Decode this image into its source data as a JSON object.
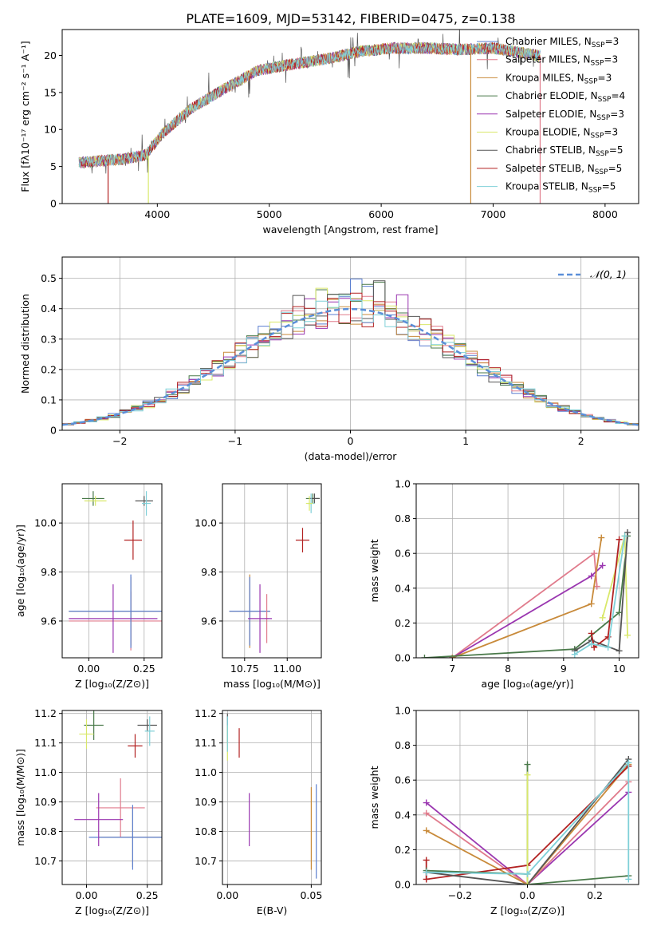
{
  "figure_title": "PLATE=1609, MJD=53142, FIBERID=0475, z=0.138",
  "colors": {
    "chabrier_miles": "#5b7fd0",
    "salpeter_miles": "#e07b8c",
    "kroupa_miles": "#c88a3a",
    "chabrier_elodie": "#4a7a4a",
    "salpeter_elodie": "#9a36b0",
    "kroupa_elodie": "#d9e86a",
    "chabrier_stelib": "#555555",
    "salpeter_stelib": "#b22222",
    "kroupa_stelib": "#7fd0d8",
    "grid": "#b0b0b0",
    "normal_curve": "#5b8fd8"
  },
  "chart_data": [
    {
      "id": "spectrum",
      "type": "line",
      "xlabel": "wavelength [Angstrom, rest frame]",
      "ylabel": "Flux [fλ10⁻¹⁷ erg cm⁻² s⁻¹ A⁻¹]",
      "xlim": [
        3150,
        8300
      ],
      "ylim": [
        0,
        23.5
      ],
      "xticks": [
        4000,
        5000,
        6000,
        7000,
        8000
      ],
      "yticks": [
        0,
        5,
        10,
        15,
        20
      ],
      "grid": false,
      "legend": "right",
      "continuum": [
        [
          3300,
          5.5
        ],
        [
          3500,
          5.8
        ],
        [
          3700,
          6.0
        ],
        [
          3900,
          6.6
        ],
        [
          4050,
          9.5
        ],
        [
          4300,
          12.8
        ],
        [
          4600,
          15.5
        ],
        [
          4900,
          18.0
        ],
        [
          5200,
          18.8
        ],
        [
          5500,
          19.5
        ],
        [
          5800,
          20.5
        ],
        [
          6100,
          21.0
        ],
        [
          6400,
          21.0
        ],
        [
          6700,
          20.8
        ],
        [
          7000,
          21.0
        ],
        [
          7400,
          20.0
        ]
      ],
      "spectrum_range": [
        3300,
        7420
      ],
      "series": [
        {
          "name": "Chabrier MILES, N$_{SSP}$=3",
          "label": "Chabrier MILES, N",
          "sub": "SSP",
          "suffix": "=3",
          "color": "#5b7fd0"
        },
        {
          "name": "Salpeter MILES, N$_{SSP}$=3",
          "label": "Salpeter MILES, N",
          "sub": "SSP",
          "suffix": "=3",
          "color": "#e07b8c"
        },
        {
          "name": "Kroupa MILES, N$_{SSP}$=3",
          "label": "Kroupa MILES, N",
          "sub": "SSP",
          "suffix": "=3",
          "color": "#c88a3a"
        },
        {
          "name": "Chabrier ELODIE, N$_{SSP}$=4",
          "label": "Chabrier ELODIE, N",
          "sub": "SSP",
          "suffix": "=4",
          "color": "#4a7a4a"
        },
        {
          "name": "Salpeter ELODIE, N$_{SSP}$=3",
          "label": "Salpeter ELODIE, N",
          "sub": "SSP",
          "suffix": "=3",
          "color": "#9a36b0"
        },
        {
          "name": "Kroupa ELODIE, N$_{SSP}$=3",
          "label": "Kroupa ELODIE, N",
          "sub": "SSP",
          "suffix": "=3",
          "color": "#d9e86a"
        },
        {
          "name": "Chabrier STELIB, N$_{SSP}$=5",
          "label": "Chabrier STELIB, N",
          "sub": "SSP",
          "suffix": "=5",
          "color": "#555555"
        },
        {
          "name": "Salpeter STELIB, N$_{SSP}$=5",
          "label": "Salpeter STELIB, N",
          "sub": "SSP",
          "suffix": "=5",
          "color": "#b22222"
        },
        {
          "name": "Kroupa STELIB, N$_{SSP}$=5",
          "label": "Kroupa STELIB, N",
          "sub": "SSP",
          "suffix": "=5",
          "color": "#7fd0d8"
        }
      ],
      "edge_drops": [
        {
          "color": "#b22222",
          "x": 3560,
          "y_from": 6
        },
        {
          "color": "#d9e86a",
          "x": 3920,
          "y_from": 6.5
        },
        {
          "color": "#c88a3a",
          "x": 6800,
          "y_from": 21
        },
        {
          "color": "#e07b8c",
          "x": 7420,
          "y_from": 20
        }
      ]
    },
    {
      "id": "residuals",
      "type": "histogram",
      "xlabel": "(data-model)/error",
      "ylabel": "Normed distribution",
      "xlim": [
        -2.5,
        2.5
      ],
      "ylim": [
        0,
        0.57
      ],
      "xticks": [
        -2,
        -1,
        0,
        1,
        2
      ],
      "xtick_labels": [
        "−2",
        "−1",
        "0",
        "1",
        "2"
      ],
      "yticks": [
        0.0,
        0.1,
        0.2,
        0.3,
        0.4,
        0.5
      ],
      "grid": true,
      "legend": "top-right",
      "normal_label": "𝒩(0, 1)",
      "bin_width": 0.1,
      "histogram_colors": [
        "#5b7fd0",
        "#e07b8c",
        "#c88a3a",
        "#4a7a4a",
        "#9a36b0",
        "#d9e86a",
        "#555555",
        "#b22222",
        "#7fd0d8"
      ]
    },
    {
      "id": "age_vs_Z",
      "type": "errorbar",
      "xlabel": "Z [log₁₀(Z/Z⊙)]",
      "ylabel": "age  [log₁₀(age/yr)]",
      "xlim": [
        -0.12,
        0.33
      ],
      "ylim": [
        9.45,
        10.16
      ],
      "xticks": [
        0.0,
        0.25
      ],
      "xtick_labels": [
        "0.00",
        "0.25"
      ],
      "yticks": [
        9.6,
        9.8,
        10.0
      ],
      "ytick_labels": [
        "9.6",
        "9.8",
        "10.0"
      ],
      "grid": true,
      "points": [
        {
          "color": "#4a7a4a",
          "x": 0.02,
          "y": 10.1,
          "xerr": 0.05,
          "yerr": 0.03
        },
        {
          "color": "#d9e86a",
          "x": 0.03,
          "y": 10.09,
          "xerr": 0.05,
          "yerr": 0.02
        },
        {
          "color": "#555555",
          "x": 0.25,
          "y": 10.09,
          "xerr": 0.04,
          "yerr": 0.02
        },
        {
          "color": "#7fd0d8",
          "x": 0.26,
          "y": 10.08,
          "xerr": 0.02,
          "yerr": 0.05
        },
        {
          "color": "#b22222",
          "x": 0.2,
          "y": 9.93,
          "xerr": 0.04,
          "yerr": 0.08
        },
        {
          "color": "#e07b8c",
          "x": 0.19,
          "y": 9.6,
          "xerr": 0.28,
          "yerr": 0.12
        },
        {
          "color": "#c88a3a",
          "x": 0.19,
          "y": 9.64,
          "xerr": 0.28,
          "yerr": 0.14
        },
        {
          "color": "#5b7fd0",
          "x": 0.19,
          "y": 9.64,
          "xerr": 0.28,
          "yerr": 0.15
        },
        {
          "color": "#9a36b0",
          "x": 0.11,
          "y": 9.61,
          "xerr": 0.2,
          "yerr": 0.14
        }
      ]
    },
    {
      "id": "age_vs_mass",
      "type": "errorbar",
      "xlabel": "mass [log₁₀(M/M⊙)]",
      "ylabel": "",
      "xlim": [
        10.62,
        11.2
      ],
      "ylim": [
        9.45,
        10.16
      ],
      "xticks": [
        10.75,
        11.0
      ],
      "xtick_labels": [
        "10.75",
        "11.00"
      ],
      "yticks": [
        9.6,
        9.8,
        10.0
      ],
      "ytick_labels": [
        "9.6",
        "9.8",
        "10.0"
      ],
      "grid": true,
      "points": [
        {
          "color": "#4a7a4a",
          "x": 11.15,
          "y": 10.1,
          "xerr": 0.04,
          "yerr": 0.02
        },
        {
          "color": "#555555",
          "x": 11.16,
          "y": 10.1,
          "xerr": 0.03,
          "yerr": 0.02
        },
        {
          "color": "#7fd0d8",
          "x": 11.14,
          "y": 10.08,
          "xerr": 0.02,
          "yerr": 0.04
        },
        {
          "color": "#d9e86a",
          "x": 11.13,
          "y": 10.08,
          "xerr": 0.02,
          "yerr": 0.03
        },
        {
          "color": "#b22222",
          "x": 11.09,
          "y": 9.93,
          "xerr": 0.04,
          "yerr": 0.05
        },
        {
          "color": "#c88a3a",
          "x": 10.78,
          "y": 9.64,
          "xerr": 0.12,
          "yerr": 0.15
        },
        {
          "color": "#5b7fd0",
          "x": 10.78,
          "y": 9.64,
          "xerr": 0.12,
          "yerr": 0.14
        },
        {
          "color": "#e07b8c",
          "x": 10.88,
          "y": 9.61,
          "xerr": 0.01,
          "yerr": 0.1
        },
        {
          "color": "#9a36b0",
          "x": 10.84,
          "y": 9.61,
          "xerr": 0.07,
          "yerr": 0.14
        }
      ]
    },
    {
      "id": "weight_vs_age",
      "type": "line",
      "xlabel": "age  [log₁₀(age/yr)]",
      "ylabel": "mass weight",
      "xlim": [
        6.35,
        10.35
      ],
      "ylim": [
        0,
        1.0
      ],
      "xticks": [
        7,
        8,
        9,
        10
      ],
      "yticks": [
        0.0,
        0.2,
        0.4,
        0.6,
        0.8,
        1.0
      ],
      "ytick_labels": [
        "0.0",
        "0.2",
        "0.4",
        "0.6",
        "0.8",
        "1.0"
      ],
      "grid": true,
      "series": [
        {
          "color": "#e07b8c",
          "points": [
            [
              7.0,
              0.0
            ],
            [
              9.55,
              0.6
            ],
            [
              9.6,
              0.41
            ]
          ]
        },
        {
          "color": "#9a36b0",
          "points": [
            [
              7.0,
              0.0
            ],
            [
              9.5,
              0.47
            ],
            [
              9.7,
              0.53
            ]
          ]
        },
        {
          "color": "#c88a3a",
          "points": [
            [
              7.0,
              0.0
            ],
            [
              9.5,
              0.31
            ],
            [
              9.68,
              0.69
            ]
          ]
        },
        {
          "color": "#4a7a4a",
          "points": [
            [
              6.5,
              0.0
            ],
            [
              9.2,
              0.05
            ],
            [
              10.0,
              0.26
            ],
            [
              10.15,
              0.7
            ]
          ]
        },
        {
          "color": "#d9e86a",
          "points": [
            [
              9.7,
              0.23
            ],
            [
              10.1,
              0.7
            ],
            [
              10.15,
              0.13
            ]
          ]
        },
        {
          "color": "#555555",
          "points": [
            [
              9.2,
              0.04
            ],
            [
              9.5,
              0.1
            ],
            [
              10.0,
              0.04
            ],
            [
              10.15,
              0.72
            ]
          ]
        },
        {
          "color": "#b22222",
          "points": [
            [
              9.5,
              0.14
            ],
            [
              9.55,
              0.06
            ],
            [
              9.8,
              0.12
            ],
            [
              10.0,
              0.68
            ]
          ]
        },
        {
          "color": "#7fd0d8",
          "points": [
            [
              9.2,
              0.02
            ],
            [
              9.5,
              0.08
            ],
            [
              9.8,
              0.06
            ],
            [
              10.1,
              0.7
            ]
          ]
        }
      ]
    },
    {
      "id": "mass_vs_Z",
      "type": "errorbar",
      "xlabel": "Z [log₁₀(Z/Z⊙)]",
      "ylabel": "mass [log₁₀(M/M⊙)]",
      "xlim": [
        -0.1,
        0.31
      ],
      "ylim": [
        10.62,
        11.21
      ],
      "xticks": [
        0.0,
        0.25
      ],
      "xtick_labels": [
        "0.00",
        "0.25"
      ],
      "yticks": [
        10.7,
        10.8,
        10.9,
        11.0,
        11.1,
        11.2
      ],
      "ytick_labels": [
        "10.7",
        "10.8",
        "10.9",
        "11.0",
        "11.1",
        "11.2"
      ],
      "grid": true,
      "points": [
        {
          "color": "#4a7a4a",
          "x": 0.03,
          "y": 11.16,
          "xerr": 0.04,
          "yerr": 0.05
        },
        {
          "color": "#d9e86a",
          "x": 0.0,
          "y": 11.13,
          "xerr": 0.03,
          "yerr": 0.05
        },
        {
          "color": "#555555",
          "x": 0.25,
          "y": 11.16,
          "xerr": 0.04,
          "yerr": 0.02
        },
        {
          "color": "#7fd0d8",
          "x": 0.26,
          "y": 11.14,
          "xerr": 0.02,
          "yerr": 0.05
        },
        {
          "color": "#b22222",
          "x": 0.2,
          "y": 11.09,
          "xerr": 0.03,
          "yerr": 0.04
        },
        {
          "color": "#e07b8c",
          "x": 0.14,
          "y": 10.88,
          "xerr": 0.1,
          "yerr": 0.1
        },
        {
          "color": "#c88a3a",
          "x": 0.19,
          "y": 10.78,
          "xerr": 0.14,
          "yerr": 0.1
        },
        {
          "color": "#5b7fd0",
          "x": 0.19,
          "y": 10.78,
          "xerr": 0.18,
          "yerr": 0.11
        },
        {
          "color": "#9a36b0",
          "x": 0.05,
          "y": 10.84,
          "xerr": 0.1,
          "yerr": 0.09
        }
      ]
    },
    {
      "id": "mass_vs_ebv",
      "type": "errorbar",
      "xlabel": "E(B-V)",
      "ylabel": "",
      "xlim": [
        -0.003,
        0.056
      ],
      "ylim": [
        10.62,
        11.21
      ],
      "xticks": [
        0.0,
        0.05
      ],
      "xtick_labels": [
        "0.00",
        "0.05"
      ],
      "yticks": [
        10.7,
        10.8,
        10.9,
        11.0,
        11.1,
        11.2
      ],
      "ytick_labels": [
        "10.7",
        "10.8",
        "10.9",
        "11.0",
        "11.1",
        "11.2"
      ],
      "grid": true,
      "points": [
        {
          "color": "#555555",
          "x": 0.0,
          "y": 11.15,
          "xerr": 0,
          "yerr": 0.05
        },
        {
          "color": "#d9e86a",
          "x": 0.0,
          "y": 11.1,
          "xerr": 0,
          "yerr": 0.06
        },
        {
          "color": "#7fd0d8",
          "x": 0.0,
          "y": 11.13,
          "xerr": 0,
          "yerr": 0.06
        },
        {
          "color": "#b22222",
          "x": 0.007,
          "y": 11.1,
          "xerr": 0,
          "yerr": 0.05
        },
        {
          "color": "#9a36b0",
          "x": 0.013,
          "y": 10.84,
          "xerr": 0,
          "yerr": 0.09
        },
        {
          "color": "#c88a3a",
          "x": 0.05,
          "y": 10.81,
          "xerr": 0,
          "yerr": 0.14
        },
        {
          "color": "#5b7fd0",
          "x": 0.053,
          "y": 10.8,
          "xerr": 0,
          "yerr": 0.16
        }
      ]
    },
    {
      "id": "weight_vs_Z",
      "type": "line",
      "xlabel": "Z [log₁₀(Z/Z⊙)]",
      "ylabel": "mass weight",
      "xlim": [
        -0.33,
        0.33
      ],
      "ylim": [
        0,
        1.0
      ],
      "xticks": [
        -0.2,
        0.0,
        0.2
      ],
      "xtick_labels": [
        "−0.2",
        "0.0",
        "0.2"
      ],
      "yticks": [
        0.0,
        0.2,
        0.4,
        0.6,
        0.8,
        1.0
      ],
      "ytick_labels": [
        "0.0",
        "0.2",
        "0.4",
        "0.6",
        "0.8",
        "1.0"
      ],
      "grid": true,
      "series": [
        {
          "color": "#9a36b0",
          "points": [
            [
              -0.3,
              0.47
            ],
            [
              0.0,
              0.0
            ],
            [
              0.3,
              0.53
            ]
          ]
        },
        {
          "color": "#e07b8c",
          "points": [
            [
              -0.3,
              0.41
            ],
            [
              0.0,
              0.0
            ],
            [
              0.3,
              0.59
            ]
          ]
        },
        {
          "color": "#c88a3a",
          "points": [
            [
              -0.3,
              0.31
            ],
            [
              0.0,
              0.0
            ],
            [
              0.3,
              0.69
            ]
          ]
        },
        {
          "color": "#b22222",
          "points": [
            [
              -0.3,
              0.14
            ],
            [
              -0.3,
              0.03
            ],
            [
              0.0,
              0.11
            ],
            [
              0.3,
              0.68
            ]
          ]
        },
        {
          "color": "#555555",
          "points": [
            [
              -0.3,
              0.07
            ],
            [
              0.0,
              0.0
            ],
            [
              0.3,
              0.72
            ]
          ]
        },
        {
          "color": "#4a7a4a",
          "points": [
            [
              -0.3,
              0.08
            ],
            [
              0.0,
              0.06
            ],
            [
              0.0,
              0.69
            ],
            [
              0.0,
              0.0
            ],
            [
              0.3,
              0.05
            ]
          ]
        },
        {
          "color": "#d9e86a",
          "points": [
            [
              0.0,
              0.63
            ],
            [
              0.0,
              0.0
            ]
          ]
        },
        {
          "color": "#7fd0d8",
          "points": [
            [
              -0.3,
              0.07
            ],
            [
              0.0,
              0.06
            ],
            [
              0.3,
              0.7
            ],
            [
              0.3,
              0.03
            ]
          ]
        }
      ]
    }
  ]
}
